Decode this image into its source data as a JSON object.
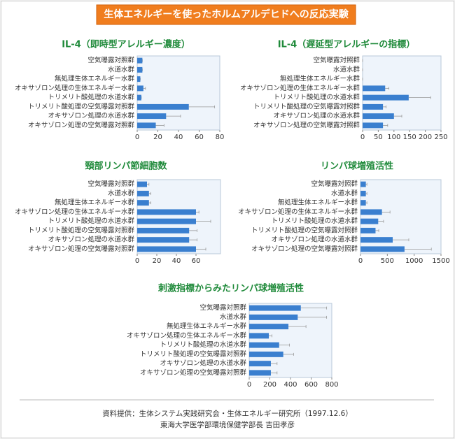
{
  "header": {
    "title": "生体エネルギーを使ったホルムアルデヒドへの反応実験"
  },
  "footer": {
    "lines": [
      "資料提供：生体システム実践研究会・生体エネルギー研究所（1997.12.6）",
      "東海大学医学部環境保健学部長 吉田孝彦"
    ]
  },
  "chart_data": [
    {
      "type": "bar",
      "orientation": "horizontal",
      "title": "IL-4（即時型アレルギー濃度）",
      "color": "#3a7fcf",
      "categories": [
        "空気曝露対照群",
        "水道水群",
        "無処理生体エネルギー水群",
        "オキサゾロン処理の生体エネルギー水群",
        "トリメリト酸処理の水道水群",
        "トリメリト酸処理の空気曝露対照群",
        "オキサゾロン処理の水道水群",
        "オキサゾロン処理の空気曝露対照群"
      ],
      "values": [
        5,
        5,
        3,
        6,
        4,
        50,
        28,
        18
      ],
      "errors": [
        0,
        0,
        0,
        2,
        0,
        25,
        14,
        8
      ],
      "xlim": [
        0,
        80
      ],
      "xticks": [
        0,
        20,
        40,
        60,
        80
      ]
    },
    {
      "type": "bar",
      "orientation": "horizontal",
      "title": "IL-4（遅延型アレルギーの指標）",
      "color": "#3a7fcf",
      "categories": [
        "空気曝露対照群",
        "水道水群",
        "無処理生体エネルギー水群",
        "オキサゾロン処理の生体エネルギー水群",
        "トリメリト酸処理の水道水群",
        "トリメリト酸処理の空気曝露対照群",
        "オキサゾロン処理の水道水群",
        "オキサゾロン処理の空気曝露対照群"
      ],
      "values": [
        0,
        0,
        0,
        72,
        147,
        65,
        100,
        65
      ],
      "errors": [
        0,
        0,
        0,
        12,
        70,
        10,
        25,
        15
      ],
      "xlim": [
        0,
        250
      ],
      "xticks": [
        0,
        50,
        100,
        150,
        200,
        250
      ]
    },
    {
      "type": "bar",
      "orientation": "horizontal",
      "title": "頸部リンパ節細胞数",
      "color": "#3a7fcf",
      "categories": [
        "空気曝露対照群",
        "水道水群",
        "無処理生体エネルギー水群",
        "オキサゾロン処理の生体エネルギー水群",
        "トリメリト酸処理の水道水群",
        "トリメリト酸処理の空気曝露対照群",
        "オキサゾロン処理の水道水群",
        "オキサゾロン処理の空気曝露対照群"
      ],
      "values": [
        10,
        12,
        12,
        60,
        60,
        53,
        53,
        60
      ],
      "errors": [
        2,
        2,
        2,
        3,
        15,
        8,
        8,
        10
      ],
      "xlim": [
        0,
        85
      ],
      "xticks": [
        0,
        20,
        40,
        60
      ]
    },
    {
      "type": "bar",
      "orientation": "horizontal",
      "title": "リンパ球増殖活性",
      "color": "#3a7fcf",
      "categories": [
        "空気曝露対照群",
        "水道水群",
        "無処理生体エネルギー水群",
        "オキサゾロン処理の生体エネルギー水群",
        "トリメリト酸処理の水道水群",
        "トリメリト酸処理の空気曝露対照群",
        "オキサゾロン処理の水道水群",
        "オキサゾロン処理の空気曝露対照群"
      ],
      "values": [
        100,
        100,
        100,
        400,
        330,
        280,
        600,
        820
      ],
      "errors": [
        20,
        20,
        20,
        150,
        100,
        60,
        300,
        500
      ],
      "xlim": [
        0,
        1500
      ],
      "xticks": [
        0,
        500,
        1000,
        1500
      ]
    },
    {
      "type": "bar",
      "orientation": "horizontal",
      "title": "刺激指標からみたリンパ球増殖活性",
      "color": "#3a7fcf",
      "categories": [
        "空気曝露対照群",
        "水道水群",
        "無処理生体エネルギー水群",
        "オキサゾロン処理の生体エネルギー水群",
        "トリメリト酸処理の水道水群",
        "トリメリト酸処理の空気曝露対照群",
        "オキサゾロン処理の水道水群",
        "オキサゾロン処理の空気曝露対照群"
      ],
      "values": [
        500,
        470,
        380,
        190,
        290,
        330,
        210,
        210
      ],
      "errors": [
        250,
        280,
        170,
        30,
        100,
        100,
        60,
        60
      ],
      "xlim": [
        0,
        800
      ],
      "xticks": [
        0,
        200,
        400,
        600,
        800
      ]
    }
  ]
}
